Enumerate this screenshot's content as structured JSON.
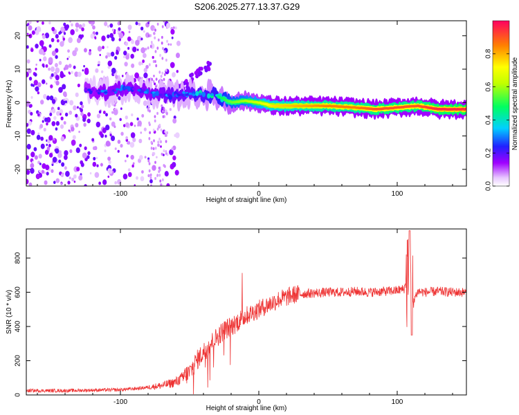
{
  "title": "S206.2025.277.13.37.G29",
  "chart_data": [
    {
      "type": "heatmap",
      "name": "spectrogram",
      "title": "S206.2025.277.13.37.G29",
      "xlabel": "Height of straight line (km)",
      "ylabel": "Frequency (Hz)",
      "xlim": [
        -168,
        150
      ],
      "ylim": [
        -25,
        24.5
      ],
      "xticks": [
        -100,
        0,
        100
      ],
      "yticks": [
        -20,
        -10,
        0,
        10,
        20
      ],
      "colorbar_label": "Normalized spectral amplitude",
      "colorbar_ticks": [
        0.0,
        0.2,
        0.4,
        0.6,
        0.8
      ],
      "colorbar_range": [
        0,
        1
      ],
      "ridge": [
        {
          "x": -125,
          "y": 4.0,
          "a": 0.25
        },
        {
          "x": -110,
          "y": 3.0,
          "a": 0.3
        },
        {
          "x": -95,
          "y": 4.5,
          "a": 0.3
        },
        {
          "x": -80,
          "y": 3.0,
          "a": 0.3
        },
        {
          "x": -62,
          "y": 2.0,
          "a": 0.35
        },
        {
          "x": -50,
          "y": 2.5,
          "a": 0.35
        },
        {
          "x": -40,
          "y": 2.5,
          "a": 0.4
        },
        {
          "x": -30,
          "y": 2.0,
          "a": 0.45
        },
        {
          "x": -20,
          "y": 0.0,
          "a": 0.55
        },
        {
          "x": -10,
          "y": 0.5,
          "a": 0.6
        },
        {
          "x": 0,
          "y": 0.0,
          "a": 0.65
        },
        {
          "x": 10,
          "y": -1.0,
          "a": 0.75
        },
        {
          "x": 30,
          "y": -1.0,
          "a": 0.8
        },
        {
          "x": 50,
          "y": -1.0,
          "a": 0.85
        },
        {
          "x": 70,
          "y": -1.5,
          "a": 0.85
        },
        {
          "x": 85,
          "y": -2.0,
          "a": 0.9
        },
        {
          "x": 100,
          "y": -1.5,
          "a": 0.9
        },
        {
          "x": 115,
          "y": -1.0,
          "a": 0.9
        },
        {
          "x": 130,
          "y": -2.0,
          "a": 0.95
        },
        {
          "x": 150,
          "y": -2.0,
          "a": 0.95
        }
      ]
    },
    {
      "type": "line",
      "name": "snr",
      "xlabel": "Height of straight line (km)",
      "ylabel": "SNR (10 * v/v)",
      "xlim": [
        -168,
        150
      ],
      "ylim": [
        0,
        970
      ],
      "xticks": [
        -100,
        0,
        100
      ],
      "yticks": [
        0,
        200,
        400,
        600,
        800
      ],
      "color": "#ee3333",
      "series": [
        {
          "name": "SNR",
          "x": [
            -168,
            -140,
            -120,
            -100,
            -85,
            -70,
            -60,
            -50,
            -45,
            -40,
            -35,
            -30,
            -25,
            -20,
            -15,
            -10,
            -5,
            0,
            5,
            10,
            15,
            20,
            25,
            30,
            40,
            50,
            60,
            70,
            80,
            90,
            100,
            105,
            108,
            110,
            112,
            115,
            120,
            130,
            140,
            150
          ],
          "values": [
            25,
            25,
            28,
            30,
            40,
            55,
            75,
            130,
            200,
            250,
            300,
            340,
            380,
            400,
            430,
            460,
            480,
            500,
            520,
            540,
            560,
            570,
            585,
            590,
            595,
            600,
            600,
            605,
            600,
            605,
            610,
            620,
            700,
            600,
            560,
            605,
            600,
            605,
            600,
            600
          ]
        }
      ]
    }
  ],
  "colors": {
    "line": "#ee3333",
    "colormap": [
      "#ffffff",
      "#c080ff",
      "#7b00ff",
      "#2020ff",
      "#00d0ff",
      "#00ff40",
      "#ffff00",
      "#ff8000",
      "#ff0060"
    ]
  }
}
